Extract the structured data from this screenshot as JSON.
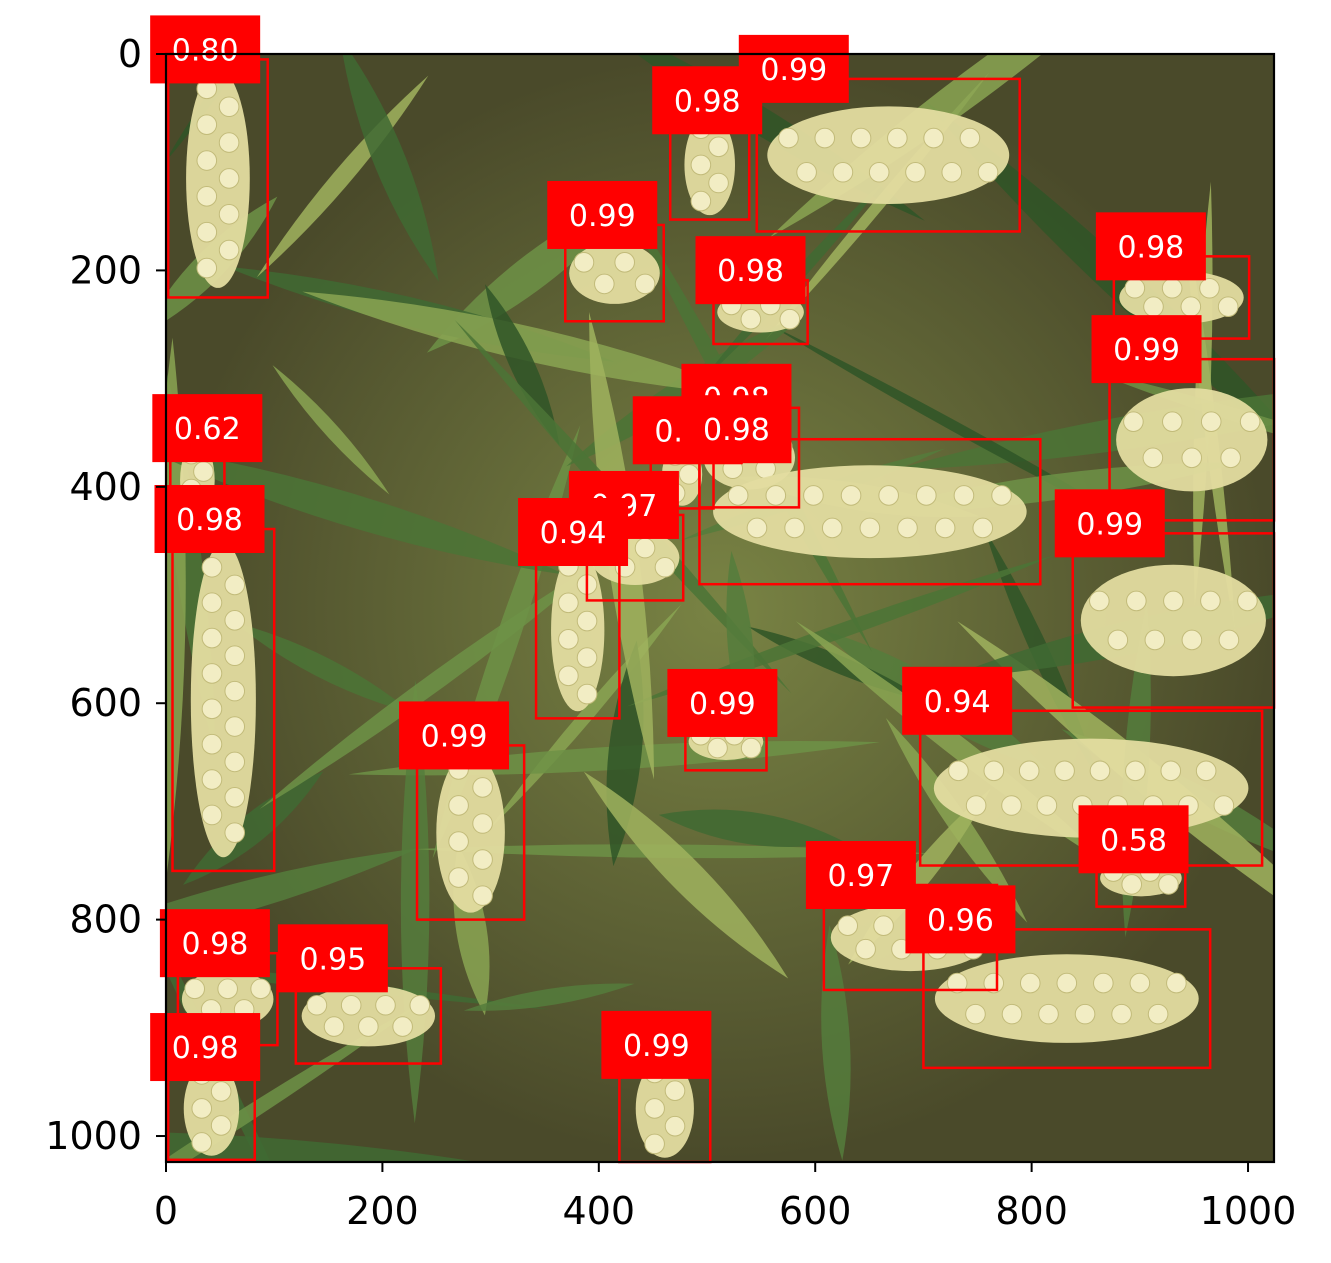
{
  "image": {
    "description_name": "wheat-field-photo",
    "x_range": [
      0,
      1024
    ],
    "y_range": [
      0,
      1024
    ]
  },
  "axes": {
    "x_ticks": [
      {
        "value": 0,
        "label": "0"
      },
      {
        "value": 200,
        "label": "200"
      },
      {
        "value": 400,
        "label": "400"
      },
      {
        "value": 600,
        "label": "600"
      },
      {
        "value": 800,
        "label": "800"
      },
      {
        "value": 1000,
        "label": "1000"
      }
    ],
    "y_ticks": [
      {
        "value": 0,
        "label": "0"
      },
      {
        "value": 200,
        "label": "200"
      },
      {
        "value": 400,
        "label": "400"
      },
      {
        "value": 600,
        "label": "600"
      },
      {
        "value": 800,
        "label": "800"
      },
      {
        "value": 1000,
        "label": "1000"
      }
    ]
  },
  "colors": {
    "box": "#ff0000",
    "label_bg": "#ff0000",
    "label_text": "#ffffff"
  },
  "detections": [
    {
      "score": "0.80",
      "x0": 2,
      "y0": 5,
      "x1": 94,
      "y1": 225
    },
    {
      "score": "0.98",
      "x0": 466,
      "y0": 52,
      "x1": 539,
      "y1": 153
    },
    {
      "score": "0.99",
      "x0": 546,
      "y0": 23,
      "x1": 789,
      "y1": 164
    },
    {
      "score": "0.99",
      "x0": 369,
      "y0": 158,
      "x1": 460,
      "y1": 247
    },
    {
      "score": "0.98",
      "x0": 506,
      "y0": 209,
      "x1": 593,
      "y1": 268
    },
    {
      "score": "0.98",
      "x0": 876,
      "y0": 187,
      "x1": 1001,
      "y1": 263
    },
    {
      "score": "0.99",
      "x0": 872,
      "y0": 282,
      "x1": 1024,
      "y1": 431
    },
    {
      "score": "0.62",
      "x0": 4,
      "y0": 355,
      "x1": 54,
      "y1": 433
    },
    {
      "score": "0.97",
      "x0": 448,
      "y0": 357,
      "x1": 506,
      "y1": 420
    },
    {
      "score": "0.98",
      "x0": 493,
      "y0": 327,
      "x1": 585,
      "y1": 419
    },
    {
      "score": "0.98",
      "x0": 493,
      "y0": 356,
      "x1": 808,
      "y1": 490
    },
    {
      "score": "0.97",
      "x0": 389,
      "y0": 426,
      "x1": 478,
      "y1": 505
    },
    {
      "score": "0.94",
      "x0": 342,
      "y0": 451,
      "x1": 419,
      "y1": 614
    },
    {
      "score": "0.98",
      "x0": 6,
      "y0": 439,
      "x1": 100,
      "y1": 755
    },
    {
      "score": "0.99",
      "x0": 838,
      "y0": 443,
      "x1": 1024,
      "y1": 604
    },
    {
      "score": "0.99",
      "x0": 480,
      "y0": 609,
      "x1": 555,
      "y1": 662
    },
    {
      "score": "0.94",
      "x0": 697,
      "y0": 607,
      "x1": 1013,
      "y1": 750
    },
    {
      "score": "0.99",
      "x0": 232,
      "y0": 639,
      "x1": 331,
      "y1": 800
    },
    {
      "score": "0.58",
      "x0": 860,
      "y0": 735,
      "x1": 942,
      "y1": 788
    },
    {
      "score": "0.97",
      "x0": 608,
      "y0": 768,
      "x1": 768,
      "y1": 865
    },
    {
      "score": "0.96",
      "x0": 700,
      "y0": 809,
      "x1": 965,
      "y1": 937
    },
    {
      "score": "0.98",
      "x0": 11,
      "y0": 831,
      "x1": 103,
      "y1": 916
    },
    {
      "score": "0.95",
      "x0": 120,
      "y0": 845,
      "x1": 254,
      "y1": 933
    },
    {
      "score": "0.98",
      "x0": 2,
      "y0": 927,
      "x1": 82,
      "y1": 1022
    },
    {
      "score": "0.99",
      "x0": 419,
      "y0": 925,
      "x1": 503,
      "y1": 1024
    }
  ]
}
